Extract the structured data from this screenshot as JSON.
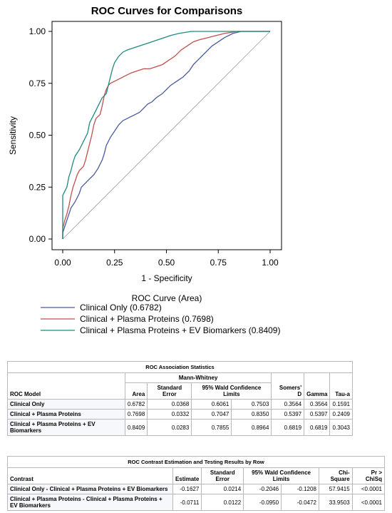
{
  "chart_data": {
    "type": "line",
    "title": "ROC Curves for Comparisons",
    "xlabel": "1 - Specificity",
    "ylabel": "Sensitivity",
    "xlim": [
      0,
      1
    ],
    "ylim": [
      0,
      1
    ],
    "x_ticks": [
      "0.00",
      "0.25",
      "0.50",
      "0.75",
      "1.00"
    ],
    "y_ticks": [
      "0.00",
      "0.25",
      "0.50",
      "0.75",
      "1.00"
    ],
    "legend_title": "ROC Curve (Area)",
    "legend_position": "bottom",
    "series": [
      {
        "name": "Clinical Only",
        "area": "(0.6782)",
        "color": "#4a5a9c",
        "points": [
          [
            0,
            0
          ],
          [
            0,
            0.03
          ],
          [
            0.01,
            0.06
          ],
          [
            0.02,
            0.09
          ],
          [
            0.03,
            0.12
          ],
          [
            0.04,
            0.15
          ],
          [
            0.06,
            0.18
          ],
          [
            0.08,
            0.22
          ],
          [
            0.09,
            0.25
          ],
          [
            0.11,
            0.27
          ],
          [
            0.13,
            0.29
          ],
          [
            0.15,
            0.31
          ],
          [
            0.17,
            0.34
          ],
          [
            0.19,
            0.38
          ],
          [
            0.2,
            0.41
          ],
          [
            0.21,
            0.45
          ],
          [
            0.23,
            0.49
          ],
          [
            0.25,
            0.52
          ],
          [
            0.27,
            0.55
          ],
          [
            0.29,
            0.57
          ],
          [
            0.31,
            0.58
          ],
          [
            0.33,
            0.59
          ],
          [
            0.35,
            0.6
          ],
          [
            0.37,
            0.61
          ],
          [
            0.39,
            0.63
          ],
          [
            0.41,
            0.65
          ],
          [
            0.43,
            0.66
          ],
          [
            0.45,
            0.68
          ],
          [
            0.48,
            0.7
          ],
          [
            0.5,
            0.72
          ],
          [
            0.52,
            0.74
          ],
          [
            0.55,
            0.76
          ],
          [
            0.58,
            0.78
          ],
          [
            0.61,
            0.81
          ],
          [
            0.63,
            0.84
          ],
          [
            0.66,
            0.87
          ],
          [
            0.68,
            0.89
          ],
          [
            0.7,
            0.91
          ],
          [
            0.72,
            0.93
          ],
          [
            0.75,
            0.95
          ],
          [
            0.78,
            0.97
          ],
          [
            0.82,
            0.99
          ],
          [
            0.86,
            1.0
          ],
          [
            0.92,
            1.0
          ],
          [
            1.0,
            1.0
          ]
        ]
      },
      {
        "name": "Clinical + Plasma Proteins",
        "area": "(0.7698)",
        "color": "#c0504d",
        "points": [
          [
            0,
            0
          ],
          [
            0,
            0.05
          ],
          [
            0.01,
            0.09
          ],
          [
            0.02,
            0.12
          ],
          [
            0.03,
            0.16
          ],
          [
            0.04,
            0.21
          ],
          [
            0.05,
            0.25
          ],
          [
            0.06,
            0.28
          ],
          [
            0.07,
            0.31
          ],
          [
            0.08,
            0.33
          ],
          [
            0.1,
            0.35
          ],
          [
            0.11,
            0.38
          ],
          [
            0.12,
            0.42
          ],
          [
            0.13,
            0.46
          ],
          [
            0.14,
            0.5
          ],
          [
            0.15,
            0.55
          ],
          [
            0.16,
            0.58
          ],
          [
            0.18,
            0.6
          ],
          [
            0.19,
            0.64
          ],
          [
            0.2,
            0.69
          ],
          [
            0.21,
            0.72
          ],
          [
            0.22,
            0.74
          ],
          [
            0.23,
            0.75
          ],
          [
            0.25,
            0.76
          ],
          [
            0.27,
            0.77
          ],
          [
            0.29,
            0.78
          ],
          [
            0.31,
            0.79
          ],
          [
            0.33,
            0.8
          ],
          [
            0.36,
            0.81
          ],
          [
            0.39,
            0.82
          ],
          [
            0.42,
            0.82
          ],
          [
            0.45,
            0.83
          ],
          [
            0.48,
            0.84
          ],
          [
            0.51,
            0.86
          ],
          [
            0.54,
            0.88
          ],
          [
            0.57,
            0.91
          ],
          [
            0.6,
            0.93
          ],
          [
            0.63,
            0.95
          ],
          [
            0.66,
            0.96
          ],
          [
            0.7,
            0.97
          ],
          [
            0.74,
            0.98
          ],
          [
            0.78,
            0.99
          ],
          [
            0.84,
            1.0
          ],
          [
            0.92,
            1.0
          ],
          [
            1.0,
            1.0
          ]
        ]
      },
      {
        "name": "Clinical + Plasma Proteins + EV Biomarkers",
        "area": "(0.8409)",
        "color": "#1f8a80",
        "points": [
          [
            0,
            0
          ],
          [
            0,
            0.1
          ],
          [
            0,
            0.21
          ],
          [
            0.01,
            0.23
          ],
          [
            0.02,
            0.25
          ],
          [
            0.03,
            0.3
          ],
          [
            0.04,
            0.33
          ],
          [
            0.05,
            0.37
          ],
          [
            0.06,
            0.4
          ],
          [
            0.08,
            0.43
          ],
          [
            0.1,
            0.47
          ],
          [
            0.12,
            0.51
          ],
          [
            0.13,
            0.56
          ],
          [
            0.15,
            0.6
          ],
          [
            0.17,
            0.64
          ],
          [
            0.19,
            0.68
          ],
          [
            0.21,
            0.7
          ],
          [
            0.22,
            0.74
          ],
          [
            0.23,
            0.78
          ],
          [
            0.24,
            0.82
          ],
          [
            0.25,
            0.85
          ],
          [
            0.27,
            0.88
          ],
          [
            0.29,
            0.9
          ],
          [
            0.31,
            0.91
          ],
          [
            0.34,
            0.92
          ],
          [
            0.37,
            0.93
          ],
          [
            0.4,
            0.94
          ],
          [
            0.43,
            0.95
          ],
          [
            0.46,
            0.96
          ],
          [
            0.49,
            0.97
          ],
          [
            0.52,
            0.98
          ],
          [
            0.56,
            0.99
          ],
          [
            0.62,
            1.0
          ],
          [
            0.7,
            1.0
          ],
          [
            0.8,
            1.0
          ],
          [
            1.0,
            1.0
          ]
        ]
      }
    ]
  },
  "table1": {
    "title": "ROC Association Statistics",
    "group_header": "Mann-Whitney",
    "ci_header": "95% Wald Confidence Limits",
    "columns": {
      "model": "ROC Model",
      "area": "Area",
      "se": "Standard Error",
      "somers": "Somers' D",
      "gamma": "Gamma",
      "tau": "Tau-a"
    },
    "rows": [
      {
        "model": "Clinical Only",
        "area": "0.6782",
        "se": "0.0368",
        "lo": "0.6061",
        "hi": "0.7503",
        "somers": "0.3564",
        "gamma": "0.3564",
        "tau": "0.1591"
      },
      {
        "model": "Clinical + Plasma Proteins",
        "area": "0.7698",
        "se": "0.0332",
        "lo": "0.7047",
        "hi": "0.8350",
        "somers": "0.5397",
        "gamma": "0.5397",
        "tau": "0.2409"
      },
      {
        "model": "Clinical + Plasma Proteins + EV Biomarkers",
        "area": "0.8409",
        "se": "0.0283",
        "lo": "0.7855",
        "hi": "0.8964",
        "somers": "0.6819",
        "gamma": "0.6819",
        "tau": "0.3043"
      }
    ]
  },
  "table2": {
    "title": "ROC Contrast Estimation and Testing Results by Row",
    "ci_header": "95% Wald Confidence Limits",
    "columns": {
      "contrast": "Contrast",
      "estimate": "Estimate",
      "se": "Standard Error",
      "chisq": "Chi-Square",
      "p": "Pr > ChiSq"
    },
    "rows": [
      {
        "contrast": "Clinical Only - Clinical + Plasma Proteins + EV Biomarkers",
        "estimate": "-0.1627",
        "se": "0.0214",
        "lo": "-0.2046",
        "hi": "-0.1208",
        "chisq": "57.9415",
        "p": "<0.0001"
      },
      {
        "contrast": "Clinical + Plasma Proteins - Clinical + Plasma Proteins + EV Biomarkers",
        "estimate": "-0.0711",
        "se": "0.0122",
        "lo": "-0.0950",
        "hi": "-0.0472",
        "chisq": "33.9503",
        "p": "<0.0001"
      }
    ]
  }
}
